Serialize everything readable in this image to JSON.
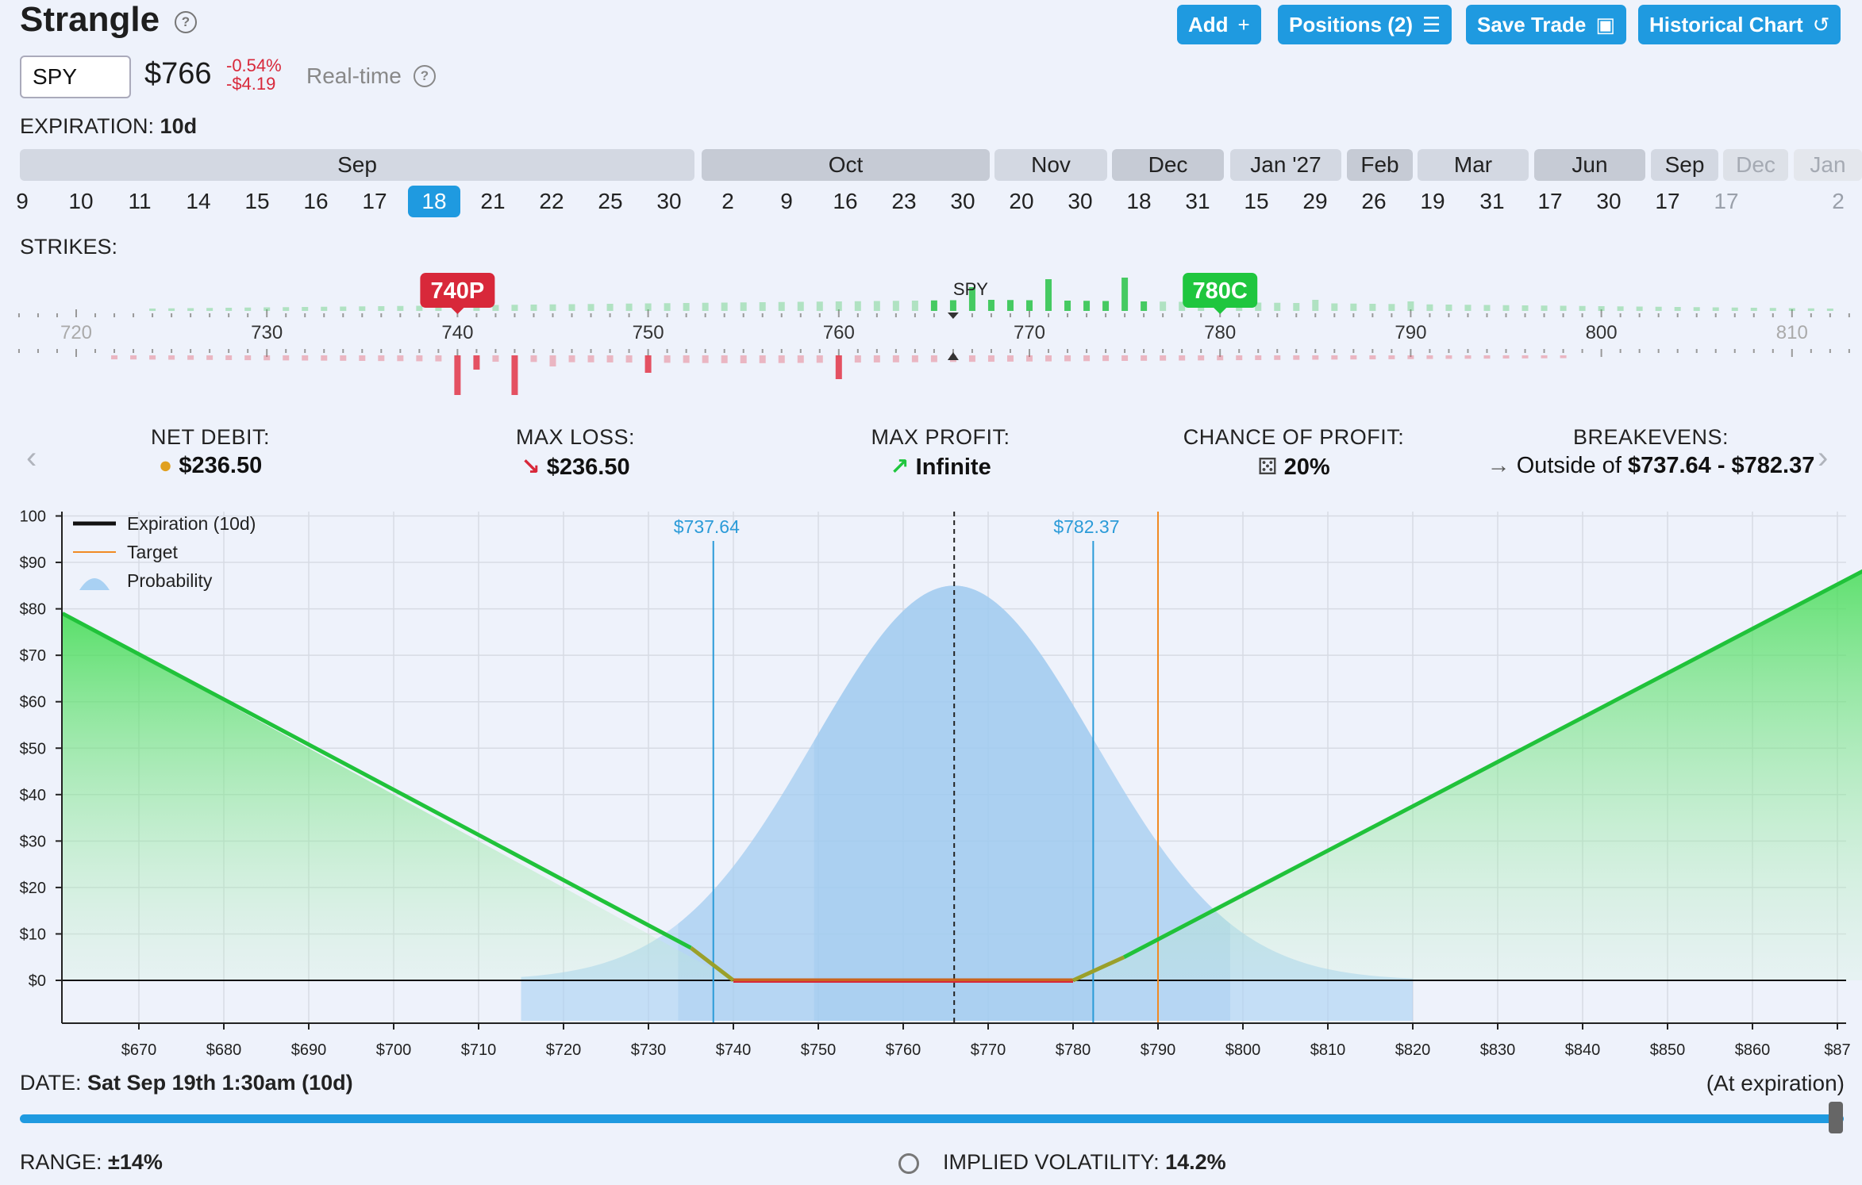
{
  "header": {
    "title": "Strangle",
    "buttons": {
      "add": "Add",
      "positions": "Positions (2)",
      "save": "Save Trade",
      "historical": "Historical Chart"
    }
  },
  "ticker": {
    "symbol": "SPY",
    "price": "$766",
    "change_pct": "-0.54%",
    "change_abs": "-$4.19",
    "realtime": "Real-time"
  },
  "expiration": {
    "label": "EXPIRATION:",
    "value": "10d",
    "months": [
      "Sep",
      "Oct",
      "Nov",
      "Dec",
      "Jan '27",
      "Feb",
      "Mar",
      "Jun",
      "Sep",
      "Dec",
      "Jan"
    ],
    "days": [
      "9",
      "10",
      "11",
      "14",
      "15",
      "16",
      "17",
      "18",
      "21",
      "22",
      "25",
      "30",
      "2",
      "9",
      "16",
      "23",
      "30",
      "20",
      "30",
      "18",
      "31",
      "15",
      "29",
      "26",
      "19",
      "31",
      "17",
      "30",
      "17",
      "17",
      "2"
    ],
    "selected_day": "18"
  },
  "strikes": {
    "label": "STRIKES:",
    "ticks": [
      "720",
      "730",
      "740",
      "750",
      "760",
      "770",
      "780",
      "790",
      "800",
      "810"
    ],
    "underlying_label": "SPY",
    "put_leg": "740P",
    "call_leg": "780C"
  },
  "stats": {
    "net_debit": {
      "label": "NET DEBIT:",
      "value": "$236.50"
    },
    "max_loss": {
      "label": "MAX LOSS:",
      "value": "$236.50"
    },
    "max_profit": {
      "label": "MAX PROFIT:",
      "value": "Infinite"
    },
    "chance": {
      "label": "CHANCE OF PROFIT:",
      "value": "20%"
    },
    "breakevens": {
      "label": "BREAKEVENS:",
      "value_prefix": "Outside of",
      "value": "$737.64 - $782.37"
    }
  },
  "chart_data": {
    "type": "line",
    "legend": [
      "Expiration (10d)",
      "Target",
      "Probability"
    ],
    "legend_position": "top-left",
    "x_ticks": [
      "$670",
      "$680",
      "$690",
      "$700",
      "$710",
      "$720",
      "$730",
      "$740",
      "$750",
      "$760",
      "$770",
      "$780",
      "$790",
      "$800",
      "$810",
      "$820",
      "$830",
      "$840",
      "$850",
      "$860",
      "$87"
    ],
    "y_ticks": [
      "100",
      "$90",
      "$80",
      "$70",
      "$60",
      "$50",
      "$40",
      "$30",
      "$20",
      "$10",
      "$0"
    ],
    "xlim": [
      661,
      876
    ],
    "ylim": [
      -9,
      100
    ],
    "series": [
      {
        "name": "Expiration (10d)",
        "x": [
          661,
          740,
          780,
          876
        ],
        "y": [
          79,
          0,
          0,
          91
        ]
      }
    ],
    "breakevens": [
      {
        "x": 737.64,
        "label": "$737.64"
      },
      {
        "x": 782.37,
        "label": "$782.37"
      }
    ],
    "target_x": 790,
    "current_price_x": 766,
    "probability": {
      "mean": 766,
      "sd": 16.5,
      "peak": 85
    },
    "grid": true
  },
  "footer": {
    "date_label": "DATE:",
    "date_value": "Sat Sep 19th 1:30am (10d)",
    "at_expiration": "(At expiration)",
    "range_label": "RANGE:",
    "range_value": "±14%",
    "iv_label": "IMPLIED VOLATILITY:",
    "iv_value": "14.2%"
  },
  "colors": {
    "accent": "#1f9ae0",
    "profit": "#1fc63e",
    "loss": "#d8283a",
    "breakeven": "#2b9bd8",
    "target": "#f08a24"
  }
}
